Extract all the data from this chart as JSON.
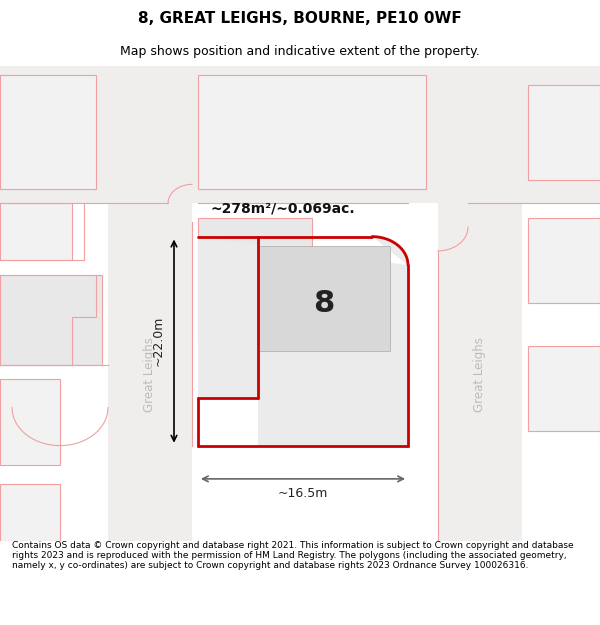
{
  "title": "8, GREAT LEIGHS, BOURNE, PE10 0WF",
  "subtitle": "Map shows position and indicative extent of the property.",
  "footer": "Contains OS data © Crown copyright and database right 2021. This information is subject to Crown copyright and database rights 2023 and is reproduced with the permission of HM Land Registry. The polygons (including the associated geometry, namely x, y co-ordinates) are subject to Crown copyright and database rights 2023 Ordnance Survey 100026316.",
  "bg_color": "#ffffff",
  "road_fill": "#f0eded",
  "block_fill": "#f2f2f2",
  "block_fill2": "#e8e8e8",
  "building_outline": "#f0a0a0",
  "highlight_color": "#cc0000",
  "prop_fill": "#ebebeb",
  "bldg_fill": "#d8d8d8",
  "street_color": "#bbbbbb",
  "area_label": "~278m²/~0.069ac.",
  "plot_label": "8",
  "dim_width": "~16.5m",
  "dim_height": "~22.0m",
  "road_label_left": "Great Leighs",
  "road_label_right": "Great Leighs",
  "title_fontsize": 11,
  "subtitle_fontsize": 9,
  "footer_fontsize": 6.5
}
